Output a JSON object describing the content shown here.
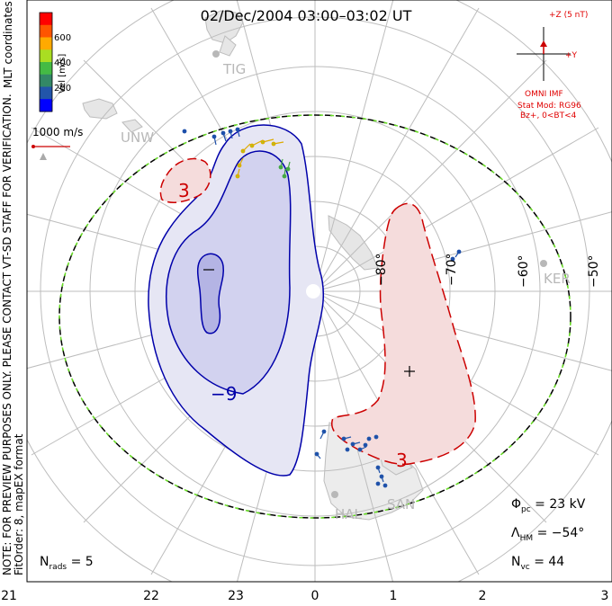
{
  "header": {
    "title": "02/Dec/2004 03:00–03:02 UT"
  },
  "side_note": {
    "line1": "NOTE: FOR PREVIEW PURPOSES ONLY. PLEASE CONTACT VT-SD STAFF FOR VERIFICATION.",
    "line2": "FitOrder: 8, mapEX format",
    "coords": "MLT coordinates"
  },
  "colorbar": {
    "label": "Vel [m/s]",
    "ticks": [
      "600",
      "400",
      "200"
    ],
    "colors": [
      "#ff0000",
      "#ff5500",
      "#ffaa00",
      "#aadd22",
      "#44bb44",
      "#338866",
      "#2255aa",
      "#0000ff"
    ]
  },
  "scale_vector": {
    "label": "1000 m/s"
  },
  "imf": {
    "z_label": "+Z (5 nT)",
    "y_label": "+Y",
    "source": "OMNI IMF",
    "model_line1": "Stat Mod: RG96",
    "model_line2": "Bz+, 0<BT<4"
  },
  "stations": [
    "TIG",
    "UNW",
    "KER",
    "HAL",
    "SAN"
  ],
  "stats": {
    "phi_label": "Φ",
    "phi_sub": "pc",
    "phi_value": "= 23 kV",
    "lambda_label": "Λ",
    "lambda_sub": "HM",
    "lambda_value": "= −54°",
    "nvc_label": "N",
    "nvc_sub": "vc",
    "nvc_value": "= 44",
    "nrads_label": "N",
    "nrads_sub": "rads",
    "nrads_value": "= 5"
  },
  "chart_data": {
    "type": "polar convection map",
    "mlt_ticks": [
      "21",
      "22",
      "23",
      "0",
      "1",
      "2",
      "3"
    ],
    "longitude_labels": [
      "−80°",
      "−70°",
      "−60°",
      "−50°"
    ],
    "contours": [
      {
        "label": "−9",
        "level": -9,
        "color": "#0000aa",
        "style": "solid"
      },
      {
        "label": "3",
        "level": 3,
        "color": "#cc0000",
        "style": "dashed"
      },
      {
        "label": "3",
        "level": 3,
        "color": "#cc0000",
        "style": "dashed"
      }
    ],
    "extrema_markers": [
      {
        "symbol": "−",
        "type": "potential minimum"
      },
      {
        "symbol": "+",
        "type": "potential maximum"
      }
    ],
    "hmb_boundary": "black dashed with green overlay",
    "colors": {
      "negative_fill": "#c8c8ee",
      "positive_fill": "#f3d4d4",
      "grid": "#bbbbbb",
      "land": "#d0d0d0"
    }
  }
}
